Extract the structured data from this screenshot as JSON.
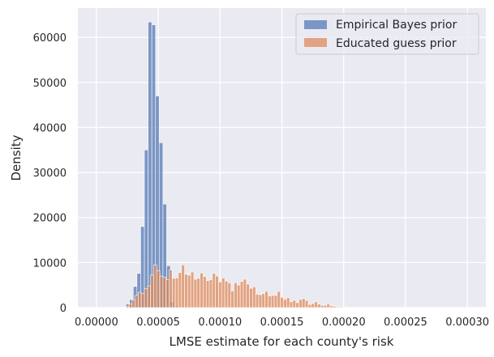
{
  "chart_data": {
    "type": "bar",
    "title": "",
    "xlabel": "LMSE estimate for each county's risk",
    "ylabel": "Density",
    "xlim": [
      -1.5e-05,
      0.000315
    ],
    "ylim": [
      0,
      66500
    ],
    "xticks": [
      0.0,
      5e-05,
      0.0001,
      0.00015,
      0.0002,
      0.00025,
      0.0003
    ],
    "xtick_labels": [
      "0.00000",
      "0.00005",
      "0.00010",
      "0.00015",
      "0.00020",
      "0.00025",
      "0.00030"
    ],
    "yticks": [
      0,
      10000,
      20000,
      30000,
      40000,
      50000,
      60000
    ],
    "ytick_labels": [
      "0",
      "10000",
      "20000",
      "30000",
      "40000",
      "50000",
      "60000"
    ],
    "grid": true,
    "legend_position": "top-right",
    "series": [
      {
        "name": "Empirical Bayes prior",
        "color": "#4c72b0",
        "opacity": 0.7,
        "bins": {
          "start": 2.38e-05,
          "width": 3e-06,
          "values": [
            800,
            1800,
            4700,
            7600,
            18000,
            35000,
            63400,
            62800,
            47000,
            36600,
            23000,
            9300,
            1300,
            300
          ]
        }
      },
      {
        "name": "Educated guess prior",
        "color": "#dd8452",
        "opacity": 0.7,
        "bins": {
          "start": 2.38e-05,
          "width": 2.5e-06,
          "values": [
            300,
            800,
            1700,
            2700,
            3400,
            3100,
            4200,
            4800,
            7200,
            9500,
            8200,
            7000,
            6800,
            6200,
            8400,
            6500,
            6600,
            7800,
            9500,
            7400,
            7200,
            7900,
            6300,
            6500,
            7700,
            6900,
            6000,
            6200,
            7600,
            7000,
            5700,
            6600,
            5900,
            5500,
            3700,
            5500,
            5000,
            5800,
            6300,
            5200,
            4300,
            4600,
            3000,
            2900,
            3100,
            3600,
            2600,
            2700,
            2700,
            3600,
            2300,
            1800,
            2200,
            1300,
            1600,
            1100,
            1800,
            2000,
            1600,
            700,
            900,
            1300,
            800,
            500,
            500,
            800,
            400,
            300,
            200,
            200,
            100,
            100
          ]
        }
      }
    ]
  }
}
